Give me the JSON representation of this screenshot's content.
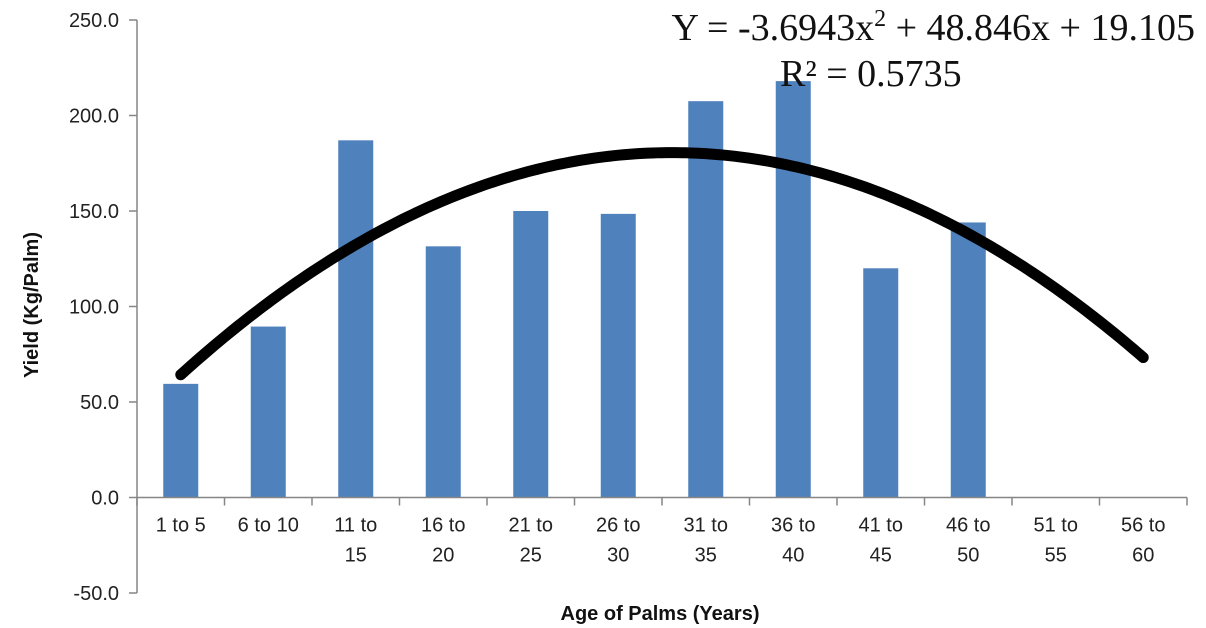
{
  "chart_data": {
    "type": "bar",
    "title": "",
    "xlabel": "Age of Palms (Years)",
    "ylabel": "Yield (Kg/Palm)",
    "ylim": [
      -50,
      250
    ],
    "yticks": [
      "-50.0",
      "0.0",
      "50.0",
      "100.0",
      "150.0",
      "200.0",
      "250.0"
    ],
    "categories": [
      [
        "1 to 5"
      ],
      [
        "6 to 10"
      ],
      [
        "11 to",
        "15"
      ],
      [
        "16 to",
        "20"
      ],
      [
        "21 to",
        "25"
      ],
      [
        "26 to",
        "30"
      ],
      [
        "31 to",
        "35"
      ],
      [
        "36 to",
        "40"
      ],
      [
        "41 to",
        "45"
      ],
      [
        "46 to",
        "50"
      ],
      [
        "51 to",
        "55"
      ],
      [
        "56 to",
        "60"
      ]
    ],
    "values": [
      59.5,
      89.5,
      187.0,
      131.5,
      150.0,
      148.5,
      207.5,
      218.0,
      120.0,
      144.0,
      null,
      null
    ],
    "bar_color": "#4f81bd",
    "trendline": {
      "type": "polynomial",
      "order": 2,
      "coefficients": [
        -3.6943,
        48.846,
        19.105
      ],
      "color": "#000000",
      "equation": "Y = -3.6943x",
      "equation_exp": "2",
      "equation_rest": " + 48.846x + 19.105",
      "r2": "R² = 0.5735"
    },
    "grid": false
  }
}
